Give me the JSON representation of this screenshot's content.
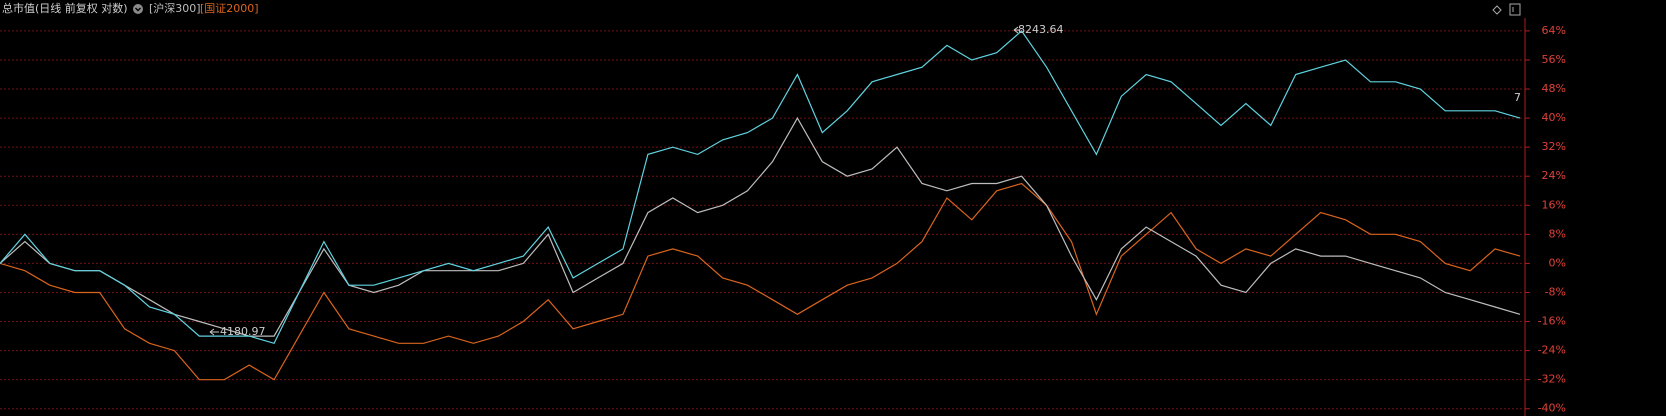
{
  "chart_data": {
    "type": "line",
    "title": "总市值(日线 前复权 对数)",
    "ylim": [
      -42,
      67
    ],
    "yticks": [
      {
        "value": 64,
        "label": "64%"
      },
      {
        "value": 56,
        "label": "56%"
      },
      {
        "value": 48,
        "label": "48%"
      },
      {
        "value": 40,
        "label": "40%"
      },
      {
        "value": 32,
        "label": "32%"
      },
      {
        "value": 24,
        "label": "24%"
      },
      {
        "value": 16,
        "label": "16%"
      },
      {
        "value": 8,
        "label": "8%"
      },
      {
        "value": 0,
        "label": "0%"
      },
      {
        "value": -8,
        "label": "-8%"
      },
      {
        "value": -16,
        "label": "-16%"
      },
      {
        "value": -24,
        "label": "-24%"
      },
      {
        "value": -32,
        "label": "-32%"
      },
      {
        "value": -40,
        "label": "-40%"
      }
    ],
    "grid": true,
    "annotations": [
      "8243.64",
      "4180.97",
      "7"
    ],
    "series": [
      {
        "color": "#5fd3e0",
        "values": [
          0,
          8,
          0,
          -2,
          -2,
          -6,
          -12,
          -14,
          -20,
          -20,
          -20,
          -22,
          -8,
          6,
          -6,
          -6,
          -4,
          -2,
          0,
          -2,
          0,
          2,
          10,
          -4,
          0,
          4,
          30,
          32,
          30,
          34,
          36,
          40,
          52,
          36,
          42,
          50,
          52,
          54,
          60,
          56,
          58,
          64,
          54,
          42,
          30,
          46,
          52,
          50,
          44,
          38,
          44,
          38,
          52,
          54,
          56,
          50,
          50,
          48,
          42,
          42,
          42,
          40
        ]
      },
      {
        "name": "[沪深300]",
        "color": "#bdbdbd",
        "values": [
          0,
          6,
          0,
          -2,
          -2,
          -6,
          -10,
          -14,
          -16,
          -18,
          -20,
          -20,
          -8,
          4,
          -6,
          -8,
          -6,
          -2,
          -2,
          -2,
          -2,
          0,
          8,
          -8,
          -4,
          0,
          14,
          18,
          14,
          16,
          20,
          28,
          40,
          28,
          24,
          26,
          32,
          22,
          20,
          22,
          22,
          24,
          16,
          2,
          -10,
          4,
          10,
          6,
          2,
          -6,
          -8,
          0,
          4,
          2,
          2,
          0,
          -2,
          -4,
          -8,
          -10,
          -12,
          -14
        ]
      },
      {
        "name": "[国证2000]",
        "color": "#d9641e",
        "values": [
          0,
          -2,
          -6,
          -8,
          -8,
          -18,
          -22,
          -24,
          -32,
          -32,
          -28,
          -32,
          -20,
          -8,
          -18,
          -20,
          -22,
          -22,
          -20,
          -22,
          -20,
          -16,
          -10,
          -18,
          -16,
          -14,
          2,
          4,
          2,
          -4,
          -6,
          -10,
          -14,
          -10,
          -6,
          -4,
          0,
          6,
          18,
          12,
          20,
          22,
          16,
          6,
          -14,
          2,
          8,
          14,
          4,
          0,
          4,
          2,
          8,
          14,
          12,
          8,
          8,
          6,
          0,
          -2,
          4,
          2
        ]
      }
    ]
  }
}
